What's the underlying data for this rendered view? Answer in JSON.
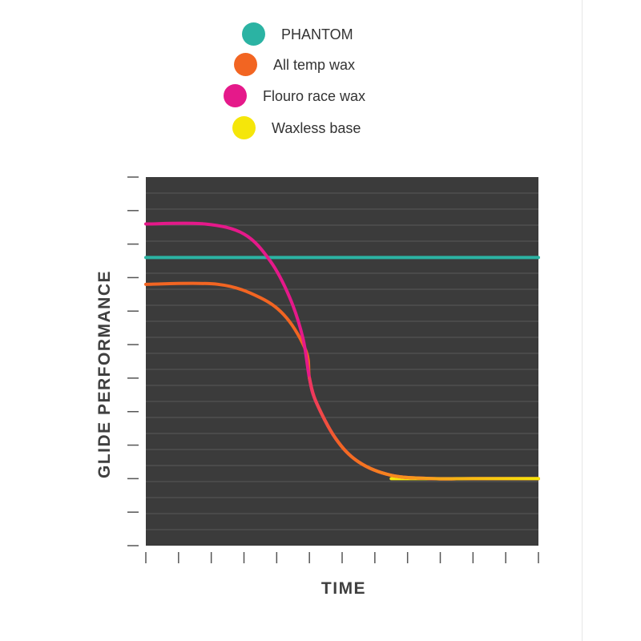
{
  "chart_data": {
    "type": "line",
    "title": "",
    "xlabel": "TIME",
    "ylabel": "GLIDE PERFORMANCE",
    "xlim": [
      0,
      12
    ],
    "ylim": [
      0,
      11
    ],
    "x_tick_count": 13,
    "y_tick_count": 12,
    "grid": true,
    "legend_placement": "top",
    "background_color": "#3b3b3b",
    "series": [
      {
        "name": "PHANTOM",
        "color": "#2bb3a3",
        "x": [
          0,
          12
        ],
        "y": [
          8.6,
          8.6
        ]
      },
      {
        "name": "All temp wax",
        "color": "#f26522",
        "x": [
          0,
          2.2,
          3.5,
          4.3,
          4.9,
          5.0,
          5.2,
          5.8,
          6.5,
          7.5,
          8.8,
          10,
          12
        ],
        "y": [
          7.8,
          7.8,
          7.4,
          6.8,
          5.8,
          5.0,
          4.3,
          3.2,
          2.5,
          2.1,
          2.0,
          2.0,
          2.0
        ]
      },
      {
        "name": "Flouro race wax",
        "color": "#e5198a",
        "x": [
          0,
          1.8,
          3.0,
          3.8,
          4.4,
          4.8,
          5.0,
          5.2,
          5.8,
          6.5,
          7.5,
          8.8,
          10,
          12
        ],
        "y": [
          9.6,
          9.6,
          9.3,
          8.5,
          7.4,
          6.2,
          5.0,
          4.3,
          3.2,
          2.5,
          2.1,
          2.0,
          2.0,
          2.0
        ]
      },
      {
        "name": "Waxless base",
        "color": "#f5e60a",
        "x": [
          7.5,
          8.8,
          10,
          12
        ],
        "y": [
          2.0,
          2.0,
          2.0,
          2.0
        ]
      }
    ]
  }
}
